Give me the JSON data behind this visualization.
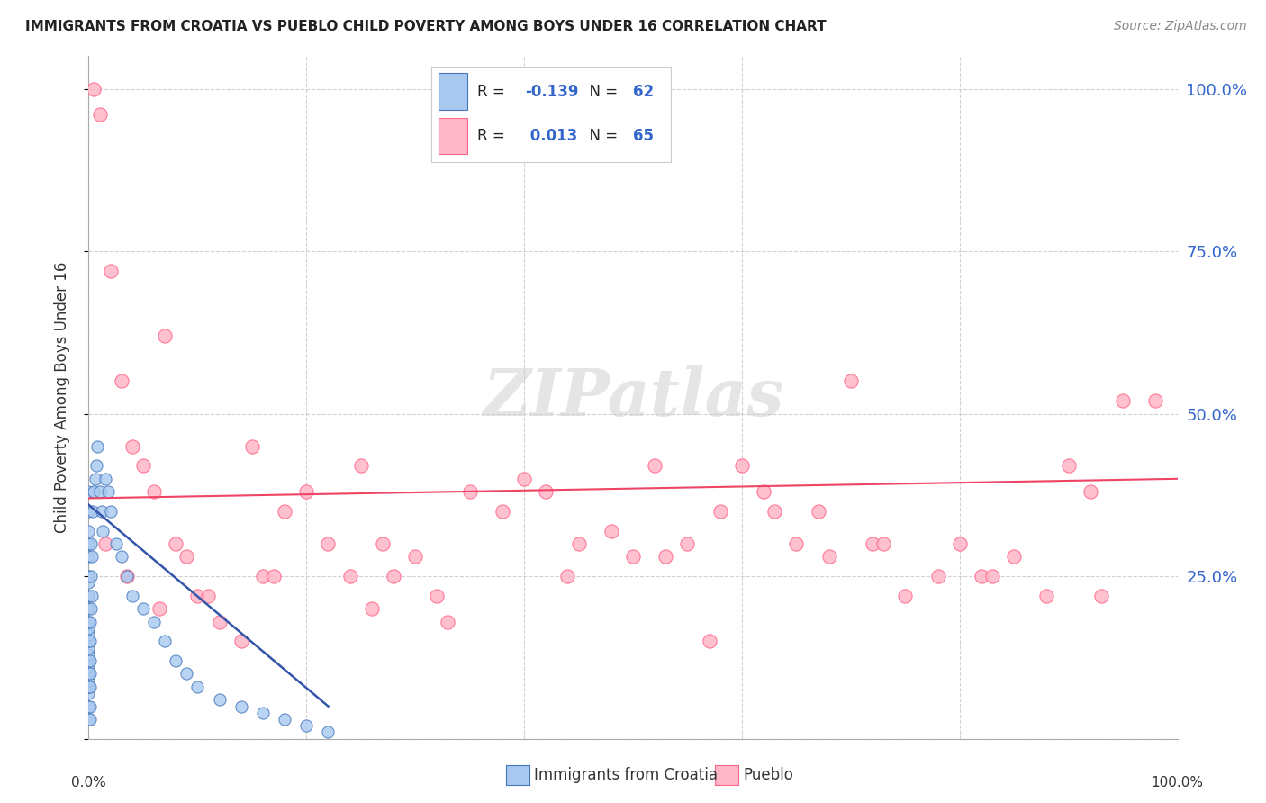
{
  "title": "IMMIGRANTS FROM CROATIA VS PUEBLO CHILD POVERTY AMONG BOYS UNDER 16 CORRELATION CHART",
  "source": "Source: ZipAtlas.com",
  "ylabel": "Child Poverty Among Boys Under 16",
  "watermark_text": "ZIPatlas",
  "legend_label1": "Immigrants from Croatia",
  "legend_label2": "Pueblo",
  "R1": -0.139,
  "N1": 62,
  "R2": 0.013,
  "N2": 65,
  "color_blue": "#A8C8F0",
  "color_pink": "#FFB6C8",
  "edge_blue": "#4477BB",
  "edge_pink": "#FF6688",
  "trendline_blue": "#3355AA",
  "trendline_pink": "#EE4466",
  "right_tick_color": "#3366CC",
  "blue_scatter_x": [
    0.0,
    0.0,
    0.0,
    0.0,
    0.0,
    0.0,
    0.0,
    0.0,
    0.0,
    0.0,
    0.0,
    0.0,
    0.0,
    0.0,
    0.0,
    0.0,
    0.0,
    0.0,
    0.0,
    0.0,
    0.0,
    0.0,
    0.0,
    0.1,
    0.1,
    0.1,
    0.1,
    0.1,
    0.1,
    0.1,
    0.2,
    0.2,
    0.2,
    0.3,
    0.3,
    0.4,
    0.5,
    0.6,
    0.7,
    0.8,
    1.0,
    1.2,
    1.3,
    1.5,
    1.8,
    2.0,
    2.5,
    3.0,
    3.5,
    4.0,
    5.0,
    6.0,
    7.0,
    8.0,
    9.0,
    10.0,
    12.0,
    14.0,
    16.0,
    18.0,
    20.0,
    22.0
  ],
  "blue_scatter_y": [
    3.0,
    5.0,
    7.0,
    8.0,
    9.0,
    10.0,
    11.0,
    12.0,
    13.0,
    14.0,
    15.0,
    16.0,
    17.0,
    18.0,
    20.0,
    22.0,
    24.0,
    25.0,
    28.0,
    30.0,
    32.0,
    35.0,
    38.0,
    3.0,
    5.0,
    8.0,
    10.0,
    12.0,
    15.0,
    18.0,
    20.0,
    25.0,
    30.0,
    22.0,
    28.0,
    35.0,
    38.0,
    40.0,
    42.0,
    45.0,
    38.0,
    35.0,
    32.0,
    40.0,
    38.0,
    35.0,
    30.0,
    28.0,
    25.0,
    22.0,
    20.0,
    18.0,
    15.0,
    12.0,
    10.0,
    8.0,
    6.0,
    5.0,
    4.0,
    3.0,
    2.0,
    1.0
  ],
  "pink_scatter_x": [
    0.5,
    1.0,
    2.0,
    3.0,
    4.0,
    5.0,
    6.0,
    7.0,
    8.0,
    9.0,
    10.0,
    12.0,
    14.0,
    15.0,
    16.0,
    18.0,
    20.0,
    22.0,
    24.0,
    25.0,
    27.0,
    28.0,
    30.0,
    32.0,
    35.0,
    38.0,
    40.0,
    42.0,
    45.0,
    48.0,
    50.0,
    52.0,
    55.0,
    58.0,
    60.0,
    62.0,
    65.0,
    68.0,
    70.0,
    72.0,
    75.0,
    78.0,
    80.0,
    82.0,
    85.0,
    88.0,
    90.0,
    92.0,
    95.0,
    98.0,
    1.5,
    3.5,
    6.5,
    11.0,
    17.0,
    26.0,
    33.0,
    44.0,
    53.0,
    63.0,
    73.0,
    83.0,
    93.0,
    57.0,
    67.0
  ],
  "pink_scatter_y": [
    100.0,
    96.0,
    72.0,
    55.0,
    45.0,
    42.0,
    38.0,
    62.0,
    30.0,
    28.0,
    22.0,
    18.0,
    15.0,
    45.0,
    25.0,
    35.0,
    38.0,
    30.0,
    25.0,
    42.0,
    30.0,
    25.0,
    28.0,
    22.0,
    38.0,
    35.0,
    40.0,
    38.0,
    30.0,
    32.0,
    28.0,
    42.0,
    30.0,
    35.0,
    42.0,
    38.0,
    30.0,
    28.0,
    55.0,
    30.0,
    22.0,
    25.0,
    30.0,
    25.0,
    28.0,
    22.0,
    42.0,
    38.0,
    52.0,
    52.0,
    30.0,
    25.0,
    20.0,
    22.0,
    25.0,
    20.0,
    18.0,
    25.0,
    28.0,
    35.0,
    30.0,
    25.0,
    22.0,
    15.0,
    35.0
  ],
  "blue_trend_x": [
    0.0,
    22.0
  ],
  "blue_trend_y": [
    36.0,
    5.0
  ],
  "pink_trend_x": [
    0.0,
    100.0
  ],
  "pink_trend_y": [
    37.0,
    40.0
  ],
  "xlim": [
    0,
    100
  ],
  "ylim": [
    0,
    105
  ],
  "yticks": [
    0,
    25,
    50,
    75,
    100
  ],
  "ytick_labels_right": [
    "",
    "25.0%",
    "50.0%",
    "75.0%",
    "100.0%"
  ]
}
